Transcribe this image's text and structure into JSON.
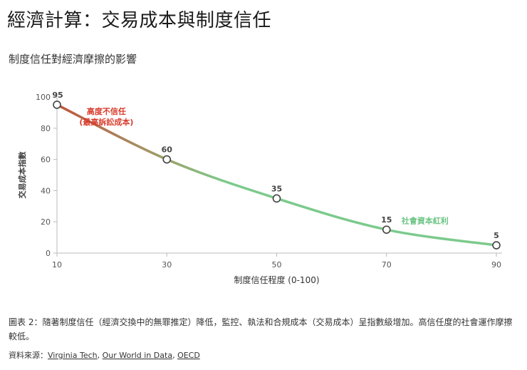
{
  "page": {
    "title": "經濟計算：交易成本與制度信任",
    "caption": "圖表 2：隨著制度信任（經濟交換中的無罪推定）降低，監控、執法和合規成本（交易成本）呈指數級增加。高信任度的社會運作摩擦較低。",
    "source_label": "資料來源：",
    "source_sep": ", ",
    "sources": [
      "Virginia Tech",
      "Our World in Data",
      "OECD"
    ]
  },
  "chart_data": {
    "type": "line",
    "title": "制度信任對經濟摩擦的影響",
    "xlabel": "制度信任程度 (0-100)",
    "ylabel": "交易成本指數",
    "xlim": [
      10,
      90
    ],
    "ylim": [
      0,
      100
    ],
    "x_ticks": [
      10,
      30,
      50,
      70,
      90
    ],
    "y_ticks": [
      0,
      20,
      40,
      60,
      80,
      100
    ],
    "points": [
      {
        "x": 10,
        "y": 95,
        "label": "95"
      },
      {
        "x": 30,
        "y": 60,
        "label": "60"
      },
      {
        "x": 50,
        "y": 35,
        "label": "35"
      },
      {
        "x": 70,
        "y": 15,
        "label": "15"
      },
      {
        "x": 90,
        "y": 5,
        "label": "5"
      }
    ],
    "annotations": [
      {
        "id": "high-cost",
        "lines": [
          "高度不信任",
          "(最高訴訟成本)"
        ],
        "x": 19,
        "y": 89,
        "color": "#d93b2b"
      },
      {
        "id": "social-capital",
        "lines": [
          "社會資本紅利"
        ],
        "x": 77,
        "y": 19,
        "color": "#6cc483"
      }
    ],
    "colors": {
      "start": "#c0533c",
      "mid": "#9ca26a",
      "end": "#7cca8c",
      "marker_stroke": "#444444",
      "marker_fill": "#ffffff",
      "axis": "#bbbbbb",
      "tick_text": "#555555"
    }
  }
}
